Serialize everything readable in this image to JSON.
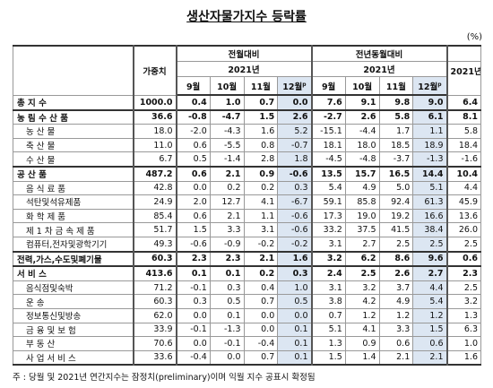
{
  "title": "생산자물가지수 등락률",
  "unit": "(%)",
  "header": {
    "weight": "가중치",
    "mom": "전월대비",
    "yoy": "전년동월대비",
    "year": "2021년",
    "months": [
      "9월",
      "10월",
      "11월",
      "12월"
    ],
    "prelim": "p",
    "annual": "2021년"
  },
  "table": {
    "rows": [
      [
        "총 지 수",
        "1000.0",
        "0.4",
        "1.0",
        "0.7",
        "0.0",
        "7.6",
        "9.1",
        "9.8",
        "9.0",
        "6.4"
      ],
      [
        "농 림 수 산 품",
        "36.6",
        "-0.8",
        "-4.7",
        "1.5",
        "2.6",
        "-2.7",
        "2.6",
        "5.8",
        "6.1",
        "8.1"
      ],
      [
        "농 산 물",
        "18.0",
        "-2.0",
        "-4.3",
        "1.6",
        "5.2",
        "-15.1",
        "-4.4",
        "1.7",
        "1.1",
        "5.8"
      ],
      [
        "축 산 물",
        "11.0",
        "0.6",
        "-5.5",
        "0.8",
        "-0.7",
        "18.1",
        "18.0",
        "18.5",
        "18.9",
        "18.4"
      ],
      [
        "수 산 물",
        "6.7",
        "0.5",
        "-1.4",
        "2.8",
        "1.8",
        "-4.5",
        "-4.8",
        "-3.7",
        "-1.3",
        "-1.6"
      ],
      [
        "공 산 품",
        "487.2",
        "0.6",
        "2.1",
        "0.9",
        "-0.6",
        "13.5",
        "15.7",
        "16.5",
        "14.4",
        "10.4"
      ],
      [
        "음 식 료 품",
        "42.8",
        "0.0",
        "0.2",
        "0.2",
        "0.3",
        "5.4",
        "4.9",
        "5.0",
        "5.1",
        "4.4"
      ],
      [
        "석탄및석유제품",
        "24.9",
        "2.0",
        "12.7",
        "4.1",
        "-6.7",
        "59.1",
        "85.8",
        "92.4",
        "61.3",
        "45.9"
      ],
      [
        "화 학 제 품",
        "85.4",
        "0.6",
        "2.1",
        "1.1",
        "-0.6",
        "17.3",
        "19.0",
        "19.2",
        "16.6",
        "13.6"
      ],
      [
        "제 1 차 금 속 제 품",
        "51.7",
        "1.5",
        "3.3",
        "3.1",
        "-0.6",
        "33.2",
        "37.5",
        "41.5",
        "38.4",
        "26.0"
      ],
      [
        "컴퓨터,전자및광학기기",
        "49.3",
        "-0.6",
        "-0.9",
        "-0.2",
        "-0.2",
        "3.1",
        "2.7",
        "2.5",
        "2.5",
        "2.5"
      ],
      [
        "전력,가스,수도및폐기물",
        "60.3",
        "2.3",
        "2.3",
        "2.1",
        "1.6",
        "3.2",
        "6.2",
        "8.6",
        "9.6",
        "0.6"
      ],
      [
        "서 비 스",
        "413.6",
        "0.1",
        "0.1",
        "0.2",
        "0.3",
        "2.4",
        "2.5",
        "2.6",
        "2.7",
        "2.3"
      ],
      [
        "음식점및숙박",
        "71.2",
        "-0.1",
        "0.3",
        "0.4",
        "1.0",
        "3.1",
        "3.2",
        "3.7",
        "4.4",
        "2.5"
      ],
      [
        "운 송",
        "60.3",
        "0.3",
        "0.5",
        "0.7",
        "0.5",
        "3.8",
        "4.2",
        "4.9",
        "5.4",
        "3.2"
      ],
      [
        "정보통신및방송",
        "62.0",
        "0.0",
        "0.1",
        "0.0",
        "0.0",
        "0.7",
        "1.2",
        "1.2",
        "1.2",
        "1.3"
      ],
      [
        "금 융 및 보 험",
        "33.9",
        "-0.1",
        "-1.3",
        "0.0",
        "0.1",
        "5.1",
        "4.1",
        "3.3",
        "1.5",
        "6.3"
      ],
      [
        "부 동 산",
        "70.6",
        "0.0",
        "-0.1",
        "-0.4",
        "0.1",
        "1.3",
        "0.9",
        "0.6",
        "0.6",
        "1.0"
      ],
      [
        "사 업 서 비 스",
        "33.6",
        "-0.4",
        "0.0",
        "0.7",
        "0.1",
        "1.5",
        "1.4",
        "2.1",
        "2.1",
        "1.6"
      ]
    ]
  },
  "footnote": "주 : 당월 및 2021년 연간지수는 잠정치(preliminary)이며 익월 지수 공표시 확정됨"
}
